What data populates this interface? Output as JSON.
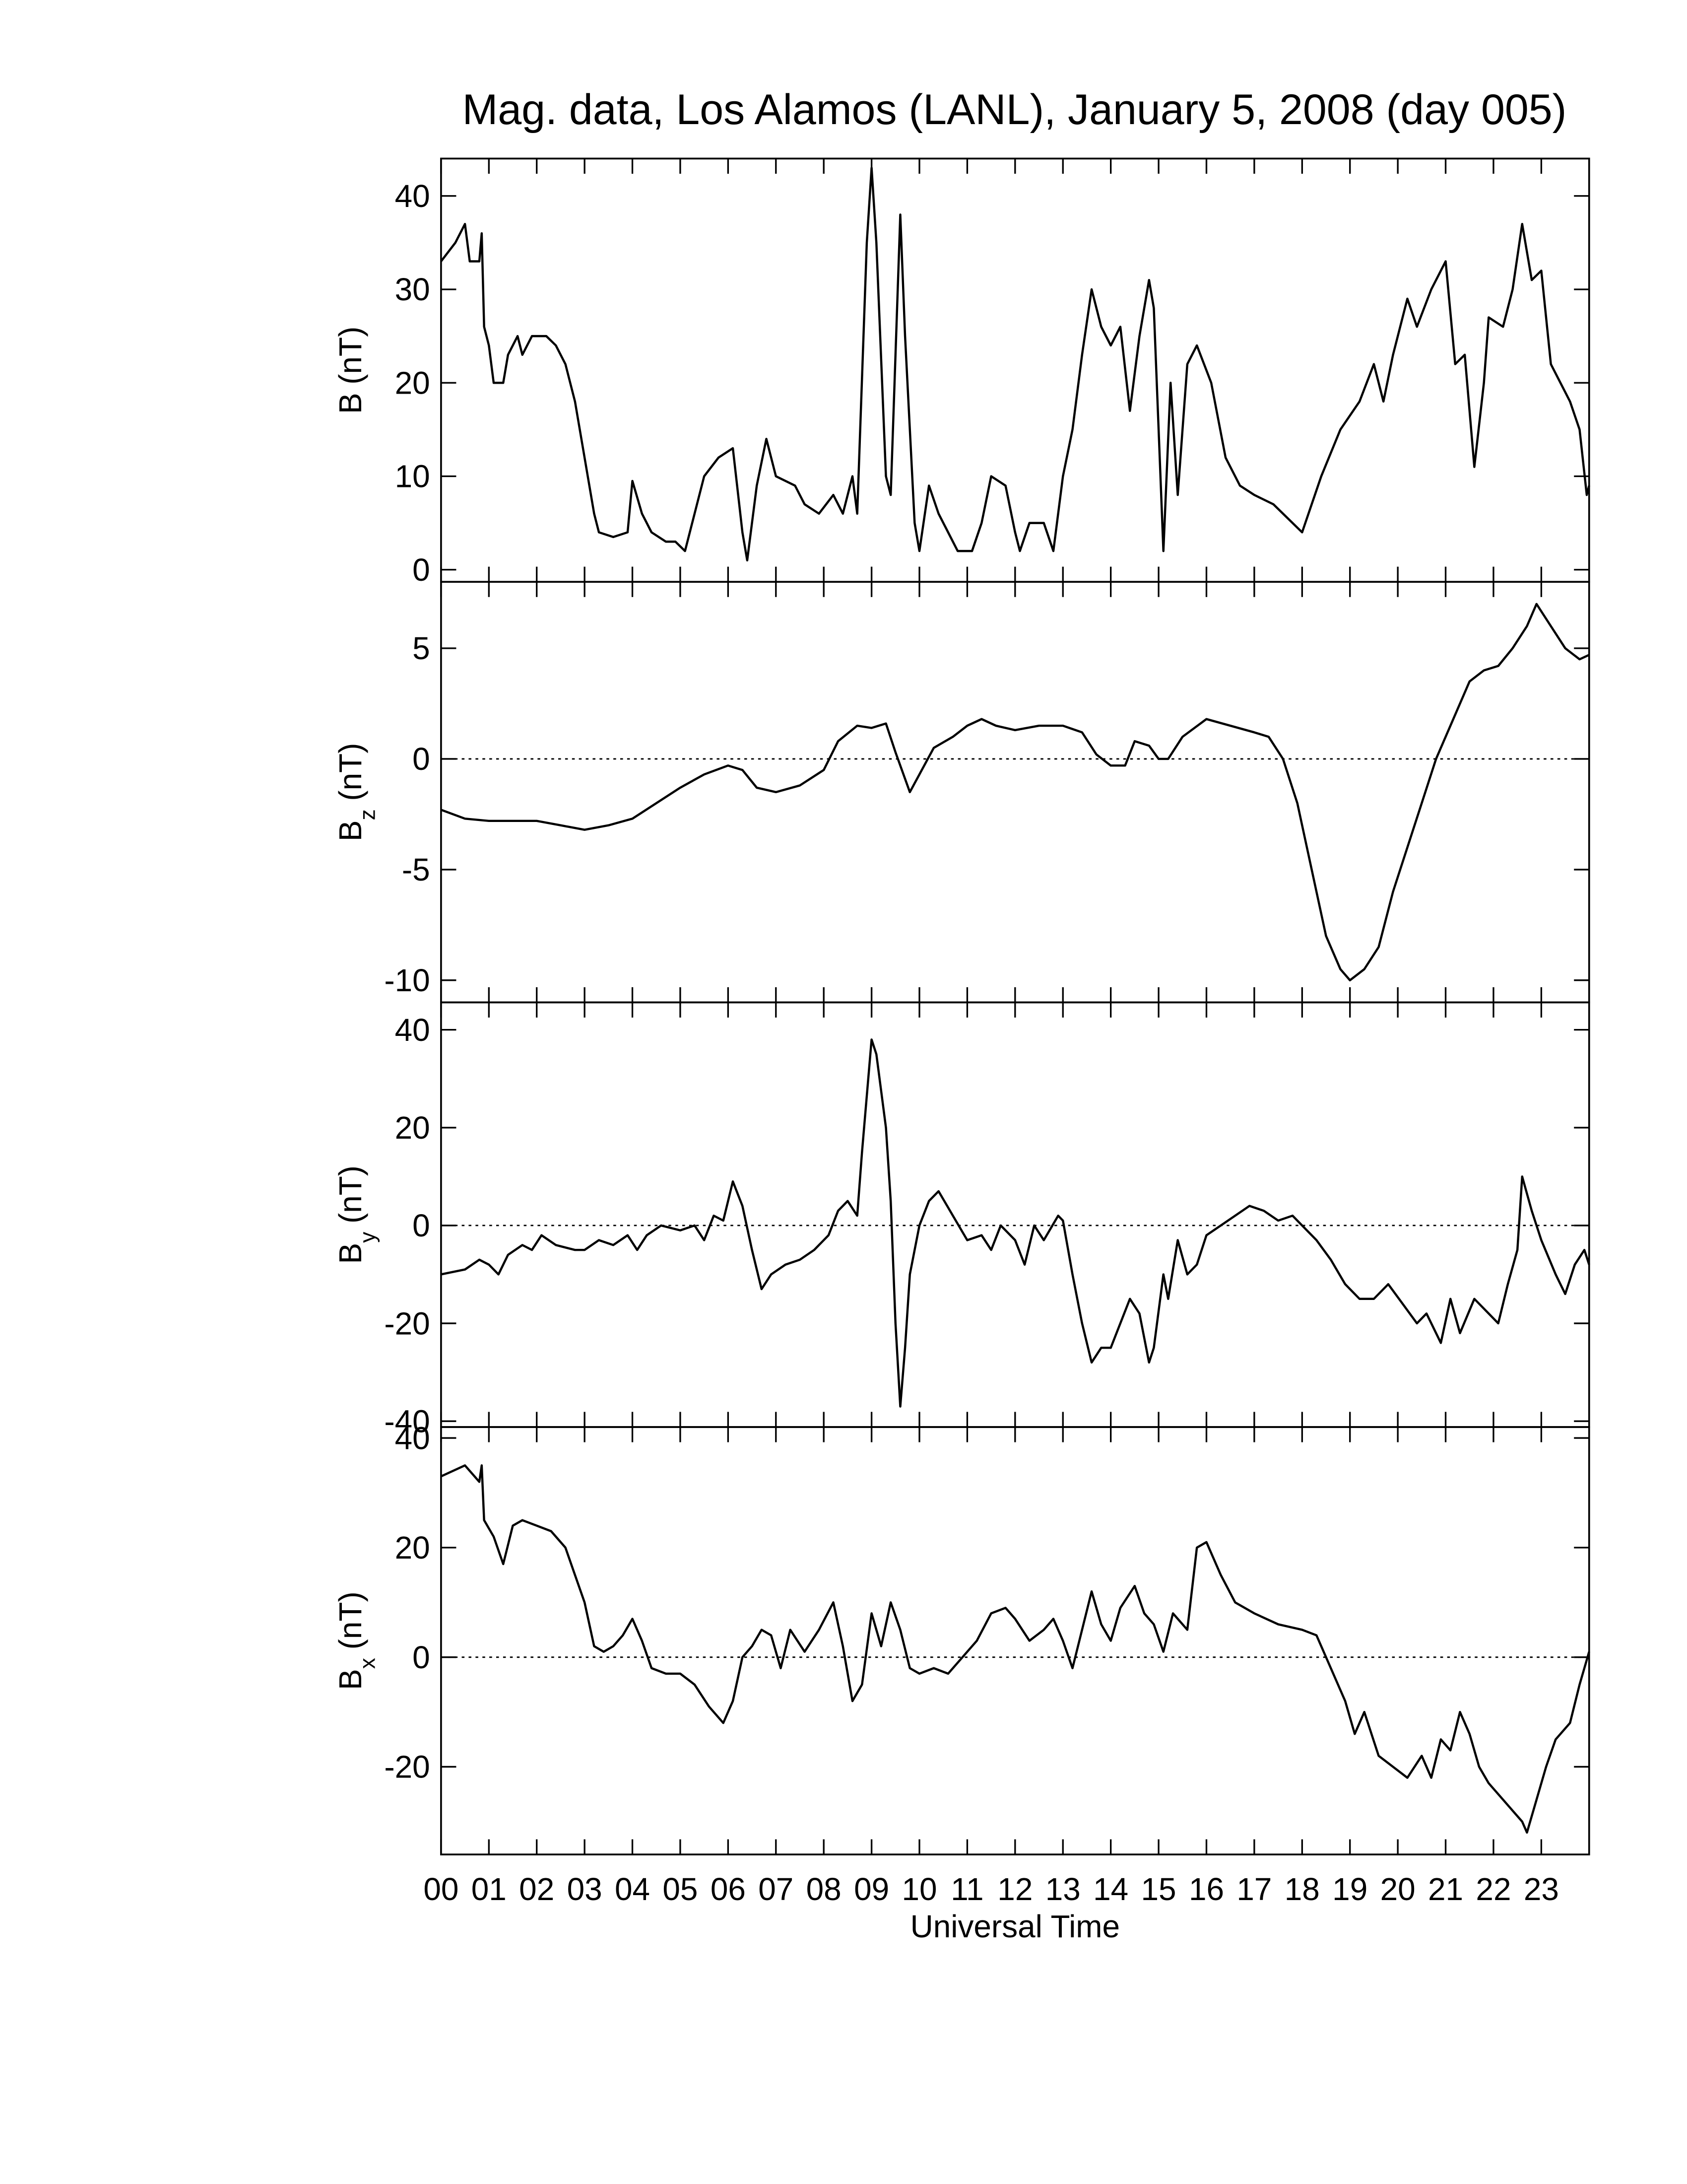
{
  "title": "Mag. data, Los Alamos (LANL), January 5, 2008 (day 005)",
  "chart_data": [
    {
      "type": "line",
      "ylabel": {
        "base": "B",
        "rest": "(nT)"
      },
      "color": "#000000",
      "ylim": [
        -1.3,
        44
      ],
      "yticks": [
        0,
        10,
        20,
        30,
        40
      ],
      "xlim": [
        0,
        24
      ],
      "x": [
        0,
        0.3,
        0.5,
        0.6,
        0.8,
        0.85,
        0.9,
        1.0,
        1.1,
        1.3,
        1.4,
        1.6,
        1.7,
        1.9,
        2.2,
        2.4,
        2.6,
        2.8,
        3.0,
        3.2,
        3.3,
        3.6,
        3.9,
        4.0,
        4.2,
        4.4,
        4.7,
        4.9,
        5.1,
        5.3,
        5.5,
        5.8,
        6.1,
        6.3,
        6.4,
        6.6,
        6.8,
        7.0,
        7.4,
        7.6,
        7.9,
        8.2,
        8.4,
        8.6,
        8.7,
        8.9,
        9.0,
        9.1,
        9.3,
        9.4,
        9.6,
        9.7,
        9.9,
        10.0,
        10.2,
        10.4,
        10.6,
        10.8,
        11.1,
        11.3,
        11.5,
        11.8,
        12.0,
        12.1,
        12.3,
        12.6,
        12.8,
        13.0,
        13.2,
        13.4,
        13.6,
        13.8,
        14.0,
        14.2,
        14.4,
        14.6,
        14.8,
        14.9,
        15.0,
        15.1,
        15.25,
        15.4,
        15.6,
        15.8,
        16.1,
        16.4,
        16.7,
        17.0,
        17.4,
        17.8,
        18.0,
        18.4,
        18.8,
        19.2,
        19.5,
        19.7,
        19.9,
        20.2,
        20.4,
        20.7,
        21.0,
        21.2,
        21.4,
        21.6,
        21.8,
        21.9,
        22.2,
        22.4,
        22.6,
        22.8,
        23.0,
        23.2,
        23.4,
        23.6,
        23.8,
        23.95,
        24
      ],
      "values": [
        33,
        35,
        37,
        33,
        33,
        36,
        26,
        24,
        20,
        20,
        23,
        25,
        23,
        25,
        25,
        24,
        22,
        18,
        12,
        6,
        4,
        3.5,
        4,
        9.5,
        6,
        4,
        3,
        3,
        2,
        6,
        10,
        12,
        13,
        4,
        1,
        9,
        14,
        10,
        9,
        7,
        6,
        8,
        6,
        10,
        6,
        35,
        43,
        35,
        10,
        8,
        38,
        25,
        5,
        2,
        9,
        6,
        4,
        2,
        2,
        5,
        10,
        9,
        4,
        2,
        5,
        5,
        2,
        10,
        15,
        23,
        30,
        26,
        24,
        26,
        17,
        25,
        31,
        28,
        15,
        2,
        20,
        8,
        22,
        24,
        20,
        12,
        9,
        8,
        7,
        5,
        4,
        10,
        15,
        18,
        22,
        18,
        23,
        29,
        26,
        30,
        33,
        22,
        23,
        11,
        20,
        27,
        26,
        30,
        37,
        31,
        32,
        22,
        20,
        18,
        15,
        8,
        9
      ]
    },
    {
      "type": "line",
      "ylabel": {
        "base": "B",
        "sub": "z",
        "rest": "(nT)"
      },
      "color": "#000000",
      "ylim": [
        -11,
        8
      ],
      "yticks": [
        -10,
        -5,
        0,
        5
      ],
      "xlim": [
        0,
        24
      ],
      "zero_line": true,
      "x": [
        0,
        0.5,
        1,
        1.5,
        2,
        2.5,
        3,
        3.5,
        4,
        4.5,
        5,
        5.5,
        6,
        6.3,
        6.6,
        7,
        7.5,
        8,
        8.3,
        8.7,
        9,
        9.3,
        9.5,
        9.8,
        10,
        10.3,
        10.7,
        11,
        11.3,
        11.6,
        12,
        12.5,
        13,
        13.4,
        13.7,
        14,
        14.3,
        14.5,
        14.8,
        15,
        15.2,
        15.5,
        16,
        16.5,
        17,
        17.3,
        17.6,
        17.9,
        18.2,
        18.5,
        18.8,
        19,
        19.3,
        19.6,
        19.9,
        20.2,
        20.5,
        20.8,
        21.1,
        21.5,
        21.8,
        22.1,
        22.4,
        22.7,
        22.9,
        23.2,
        23.5,
        23.8,
        24
      ],
      "values": [
        -2.3,
        -2.7,
        -2.8,
        -2.8,
        -2.8,
        -3,
        -3.2,
        -3,
        -2.7,
        -2,
        -1.3,
        -0.7,
        -0.3,
        -0.5,
        -1.3,
        -1.5,
        -1.2,
        -0.5,
        0.8,
        1.5,
        1.4,
        1.6,
        0.3,
        -1.5,
        -0.7,
        0.5,
        1.0,
        1.5,
        1.8,
        1.5,
        1.3,
        1.5,
        1.5,
        1.2,
        0.2,
        -0.3,
        -0.3,
        0.8,
        0.6,
        0,
        0,
        1.0,
        1.8,
        1.5,
        1.2,
        1.0,
        0,
        -2,
        -5,
        -8,
        -9.5,
        -10,
        -9.5,
        -8.5,
        -6,
        -4,
        -2,
        0,
        1.5,
        3.5,
        4,
        4.2,
        5,
        6,
        7,
        6,
        5,
        4.5,
        4.7
      ]
    },
    {
      "type": "line",
      "ylabel": {
        "base": "B",
        "sub": "y",
        "rest": "(nT)"
      },
      "color": "#000000",
      "ylim": [
        -41.2,
        45.6
      ],
      "yticks": [
        -40,
        -20,
        0,
        20,
        40
      ],
      "xlim": [
        0,
        24
      ],
      "zero_line": true,
      "x": [
        0,
        0.5,
        0.8,
        1,
        1.2,
        1.4,
        1.7,
        1.9,
        2.1,
        2.4,
        2.8,
        3,
        3.3,
        3.6,
        3.9,
        4.1,
        4.3,
        4.6,
        5,
        5.3,
        5.5,
        5.7,
        5.9,
        6.1,
        6.3,
        6.5,
        6.7,
        6.9,
        7.2,
        7.5,
        7.8,
        8.1,
        8.3,
        8.5,
        8.7,
        8.8,
        9.0,
        9.1,
        9.3,
        9.4,
        9.5,
        9.6,
        9.7,
        9.8,
        10,
        10.2,
        10.4,
        10.7,
        11,
        11.3,
        11.5,
        11.7,
        12,
        12.2,
        12.4,
        12.6,
        12.9,
        13.0,
        13.2,
        13.4,
        13.6,
        13.8,
        14.0,
        14.2,
        14.4,
        14.6,
        14.8,
        14.9,
        15.1,
        15.2,
        15.4,
        15.6,
        15.8,
        16.0,
        16.3,
        16.6,
        16.9,
        17.2,
        17.5,
        17.8,
        18,
        18.3,
        18.6,
        18.9,
        19.2,
        19.5,
        19.8,
        20.1,
        20.4,
        20.6,
        20.9,
        21.1,
        21.3,
        21.6,
        21.9,
        22.1,
        22.3,
        22.5,
        22.6,
        22.8,
        23,
        23.3,
        23.5,
        23.7,
        23.9,
        24
      ],
      "values": [
        -10,
        -9,
        -7,
        -8,
        -10,
        -6,
        -4,
        -5,
        -2,
        -4,
        -5,
        -5,
        -3,
        -4,
        -2,
        -5,
        -2,
        0,
        -1,
        0,
        -3,
        2,
        1,
        9,
        4,
        -5,
        -13,
        -10,
        -8,
        -7,
        -5,
        -2,
        3,
        5,
        2,
        15,
        38,
        35,
        20,
        5,
        -20,
        -37,
        -25,
        -10,
        0,
        5,
        7,
        2,
        -3,
        -2,
        -5,
        0,
        -3,
        -8,
        0,
        -3,
        2,
        1,
        -10,
        -20,
        -28,
        -25,
        -25,
        -20,
        -15,
        -18,
        -28,
        -25,
        -10,
        -15,
        -3,
        -10,
        -8,
        -2,
        0,
        2,
        4,
        3,
        1,
        2,
        0,
        -3,
        -7,
        -12,
        -15,
        -15,
        -12,
        -16,
        -20,
        -18,
        -24,
        -15,
        -22,
        -15,
        -18,
        -20,
        -12,
        -5,
        10,
        3,
        -3,
        -10,
        -14,
        -8,
        -5,
        -8
      ]
    },
    {
      "type": "line",
      "ylabel": {
        "base": "B",
        "sub": "x",
        "rest": "(nT)"
      },
      "color": "#000000",
      "ylim": [
        -36,
        42
      ],
      "yticks": [
        -20,
        0,
        20,
        40
      ],
      "xlim": [
        0,
        24
      ],
      "zero_line": true,
      "xlabel": "Universal Time",
      "xticks": [
        {
          "value": 0,
          "label": "00"
        },
        {
          "value": 1,
          "label": "01"
        },
        {
          "value": 2,
          "label": "02"
        },
        {
          "value": 3,
          "label": "03"
        },
        {
          "value": 4,
          "label": "04"
        },
        {
          "value": 5,
          "label": "05"
        },
        {
          "value": 6,
          "label": "06"
        },
        {
          "value": 7,
          "label": "07"
        },
        {
          "value": 8,
          "label": "08"
        },
        {
          "value": 9,
          "label": "09"
        },
        10,
        11,
        12,
        13,
        14,
        15,
        16,
        17,
        18,
        19,
        20,
        21,
        22,
        23
      ],
      "x": [
        0,
        0.5,
        0.8,
        0.85,
        0.9,
        1.1,
        1.3,
        1.5,
        1.7,
        2.0,
        2.3,
        2.6,
        2.8,
        3.0,
        3.2,
        3.4,
        3.6,
        3.8,
        4.0,
        4.2,
        4.4,
        4.7,
        5.0,
        5.3,
        5.6,
        5.9,
        6.1,
        6.3,
        6.5,
        6.7,
        6.9,
        7.1,
        7.3,
        7.6,
        7.9,
        8.2,
        8.4,
        8.6,
        8.8,
        9.0,
        9.2,
        9.4,
        9.6,
        9.8,
        10.0,
        10.3,
        10.6,
        10.9,
        11.2,
        11.5,
        11.8,
        12.0,
        12.3,
        12.6,
        12.8,
        13.0,
        13.2,
        13.4,
        13.6,
        13.8,
        14.0,
        14.2,
        14.5,
        14.7,
        14.9,
        15.1,
        15.3,
        15.6,
        15.8,
        16.0,
        16.3,
        16.6,
        17,
        17.5,
        18,
        18.3,
        18.6,
        18.9,
        19.1,
        19.3,
        19.6,
        19.9,
        20.2,
        20.5,
        20.7,
        20.9,
        21.1,
        21.3,
        21.5,
        21.7,
        21.9,
        22.2,
        22.4,
        22.6,
        22.7,
        22.9,
        23.1,
        23.3,
        23.6,
        23.8,
        24
      ],
      "values": [
        33,
        35,
        32,
        35,
        25,
        22,
        17,
        24,
        25,
        24,
        23,
        20,
        15,
        10,
        2,
        1,
        2,
        4,
        7,
        3,
        -2,
        -3,
        -3,
        -5,
        -9,
        -12,
        -8,
        0,
        2,
        5,
        4,
        -2,
        5,
        1,
        5,
        10,
        2,
        -8,
        -5,
        8,
        2,
        10,
        5,
        -2,
        -3,
        -2,
        -3,
        0,
        3,
        8,
        9,
        7,
        3,
        5,
        7,
        3,
        -2,
        5,
        12,
        6,
        3,
        9,
        13,
        8,
        6,
        1,
        8,
        5,
        20,
        21,
        15,
        10,
        8,
        6,
        5,
        4,
        -2,
        -8,
        -14,
        -10,
        -18,
        -20,
        -22,
        -18,
        -22,
        -15,
        -17,
        -10,
        -14,
        -20,
        -23,
        -26,
        -28,
        -30,
        -32,
        -26,
        -20,
        -15,
        -12,
        -5,
        1
      ]
    }
  ]
}
